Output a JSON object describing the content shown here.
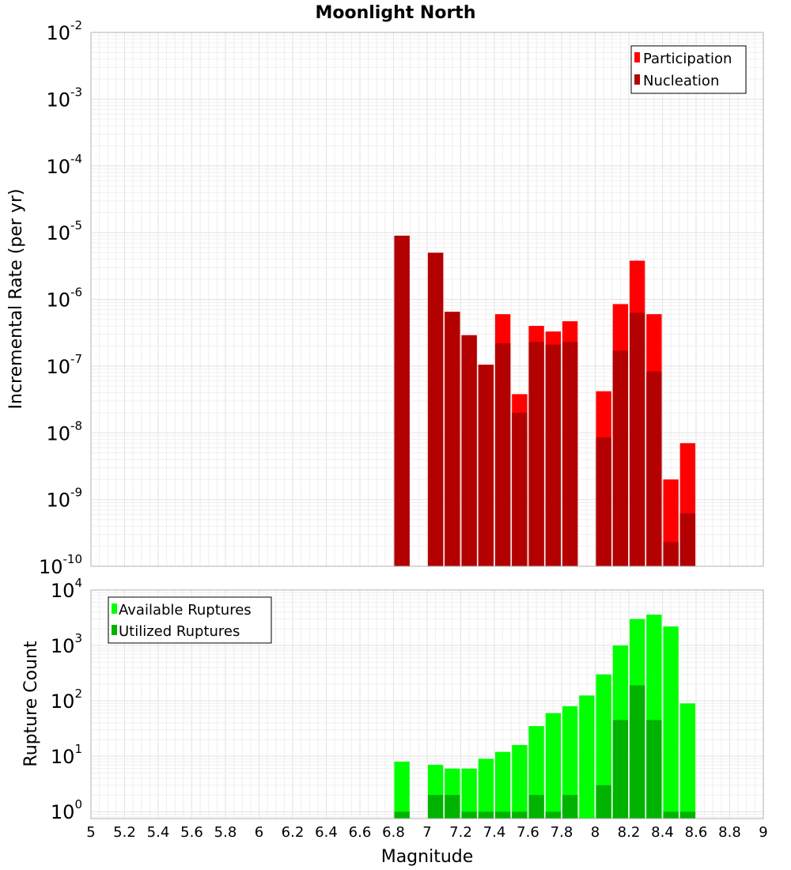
{
  "title": "Moonlight North",
  "chart_data": [
    {
      "type": "bar",
      "name": "rate-panel",
      "xlabel": "",
      "ylabel": "Incremental Rate (per yr)",
      "yscale": "log",
      "ylim": [
        1e-10,
        0.01
      ],
      "xlim": [
        5,
        9
      ],
      "grid": true,
      "legend_position": "top-right",
      "x": [
        6.85,
        7.05,
        7.15,
        7.25,
        7.35,
        7.45,
        7.55,
        7.65,
        7.75,
        7.85,
        8.05,
        8.15,
        8.25,
        8.35,
        8.45,
        8.55
      ],
      "series": [
        {
          "name": "Participation",
          "color": "#ff0000",
          "values": [
            9e-06,
            5e-06,
            6.5e-07,
            2.9e-07,
            1.05e-07,
            6e-07,
            3.8e-08,
            4e-07,
            3.3e-07,
            4.7e-07,
            4.2e-08,
            8.5e-07,
            3.8e-06,
            6e-07,
            2e-09,
            7e-09
          ]
        },
        {
          "name": "Nucleation",
          "color": "#b30000",
          "values": [
            9e-06,
            5e-06,
            6.5e-07,
            2.9e-07,
            1.05e-07,
            2.2e-07,
            2e-08,
            2.3e-07,
            2.1e-07,
            2.3e-07,
            8.5e-09,
            1.7e-07,
            6.3e-07,
            8.3e-08,
            2.3e-10,
            6.2e-10
          ]
        }
      ],
      "y_ticks": [
        {
          "base": "10",
          "exp": "-10"
        },
        {
          "base": "10",
          "exp": "-9"
        },
        {
          "base": "10",
          "exp": "-8"
        },
        {
          "base": "10",
          "exp": "-7"
        },
        {
          "base": "10",
          "exp": "-6"
        },
        {
          "base": "10",
          "exp": "-5"
        },
        {
          "base": "10",
          "exp": "-4"
        },
        {
          "base": "10",
          "exp": "-3"
        },
        {
          "base": "10",
          "exp": "-2"
        }
      ]
    },
    {
      "type": "bar",
      "name": "count-panel",
      "xlabel": "Magnitude",
      "ylabel": "Rupture Count",
      "yscale": "log",
      "ylim": [
        0.75,
        10000
      ],
      "xlim": [
        5,
        9
      ],
      "grid": true,
      "legend_position": "top-left",
      "x": [
        6.85,
        7.05,
        7.15,
        7.25,
        7.35,
        7.45,
        7.55,
        7.65,
        7.75,
        7.85,
        7.95,
        8.05,
        8.15,
        8.25,
        8.35,
        8.45,
        8.55
      ],
      "series": [
        {
          "name": "Available Ruptures",
          "color": "#00ff00",
          "values": [
            8,
            7,
            6,
            6,
            9,
            12,
            16,
            35,
            60,
            80,
            125,
            300,
            1000,
            3000,
            3600,
            2200,
            90
          ]
        },
        {
          "name": "Utilized Ruptures",
          "color": "#00b300",
          "values": [
            1,
            2,
            2,
            1,
            1,
            1,
            1,
            2,
            1,
            2,
            0,
            3,
            45,
            190,
            45,
            1,
            1
          ]
        }
      ],
      "y_ticks": [
        {
          "base": "10",
          "exp": "0"
        },
        {
          "base": "10",
          "exp": "1"
        },
        {
          "base": "10",
          "exp": "2"
        },
        {
          "base": "10",
          "exp": "3"
        },
        {
          "base": "10",
          "exp": "4"
        }
      ],
      "x_ticks": [
        "5",
        "5.2",
        "5.4",
        "5.6",
        "5.8",
        "6",
        "6.2",
        "6.4",
        "6.6",
        "6.8",
        "7",
        "7.2",
        "7.4",
        "7.6",
        "7.8",
        "8",
        "8.2",
        "8.4",
        "8.6",
        "8.8",
        "9"
      ]
    }
  ]
}
